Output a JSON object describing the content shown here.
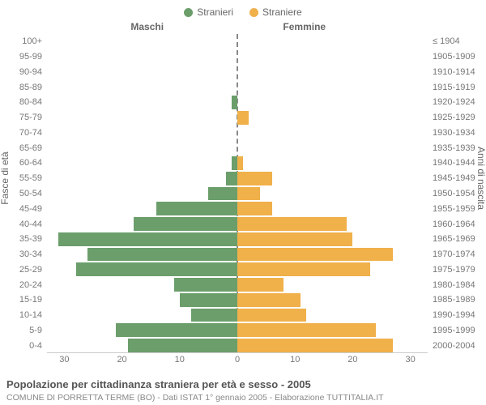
{
  "legend": {
    "male": {
      "label": "Stranieri",
      "color": "#6b9e6b"
    },
    "female": {
      "label": "Straniere",
      "color": "#f0b04a"
    }
  },
  "titles": {
    "male_col": "Maschi",
    "female_col": "Femmine",
    "age_axis": "Fasce di età",
    "birth_axis": "Anni di nascita"
  },
  "caption": {
    "main": "Popolazione per cittadinanza straniera per età e sesso - 2005",
    "sub": "COMUNE DI PORRETTA TERME (BO) - Dati ISTAT 1° gennaio 2005 - Elaborazione TUTTITALIA.IT"
  },
  "style": {
    "background_color": "#ffffff",
    "grid_color": "#cccccc",
    "text_color": "#666666",
    "label_fontsize": 11,
    "title_fontsize": 12,
    "caption_fontsize": 13,
    "subcaption_fontsize": 10.5
  },
  "pyramid": {
    "type": "population-pyramid",
    "xlim": 33,
    "xticks_left": [
      30,
      20,
      10,
      0
    ],
    "xticks_right": [
      0,
      10,
      20,
      30
    ],
    "rows": [
      {
        "age": "100+",
        "birth": "≤ 1904",
        "m": 0,
        "f": 0
      },
      {
        "age": "95-99",
        "birth": "1905-1909",
        "m": 0,
        "f": 0
      },
      {
        "age": "90-94",
        "birth": "1910-1914",
        "m": 0,
        "f": 0
      },
      {
        "age": "85-89",
        "birth": "1915-1919",
        "m": 0,
        "f": 0
      },
      {
        "age": "80-84",
        "birth": "1920-1924",
        "m": 1,
        "f": 0
      },
      {
        "age": "75-79",
        "birth": "1925-1929",
        "m": 0,
        "f": 2
      },
      {
        "age": "70-74",
        "birth": "1930-1934",
        "m": 0,
        "f": 0
      },
      {
        "age": "65-69",
        "birth": "1935-1939",
        "m": 0,
        "f": 0
      },
      {
        "age": "60-64",
        "birth": "1940-1944",
        "m": 1,
        "f": 1
      },
      {
        "age": "55-59",
        "birth": "1945-1949",
        "m": 2,
        "f": 6
      },
      {
        "age": "50-54",
        "birth": "1950-1954",
        "m": 5,
        "f": 4
      },
      {
        "age": "45-49",
        "birth": "1955-1959",
        "m": 14,
        "f": 6
      },
      {
        "age": "40-44",
        "birth": "1960-1964",
        "m": 18,
        "f": 19
      },
      {
        "age": "35-39",
        "birth": "1965-1969",
        "m": 31,
        "f": 20
      },
      {
        "age": "30-34",
        "birth": "1970-1974",
        "m": 26,
        "f": 27
      },
      {
        "age": "25-29",
        "birth": "1975-1979",
        "m": 28,
        "f": 23
      },
      {
        "age": "20-24",
        "birth": "1980-1984",
        "m": 11,
        "f": 8
      },
      {
        "age": "15-19",
        "birth": "1985-1989",
        "m": 10,
        "f": 11
      },
      {
        "age": "10-14",
        "birth": "1990-1994",
        "m": 8,
        "f": 12
      },
      {
        "age": "5-9",
        "birth": "1995-1999",
        "m": 21,
        "f": 24
      },
      {
        "age": "0-4",
        "birth": "2000-2004",
        "m": 19,
        "f": 27
      }
    ]
  }
}
